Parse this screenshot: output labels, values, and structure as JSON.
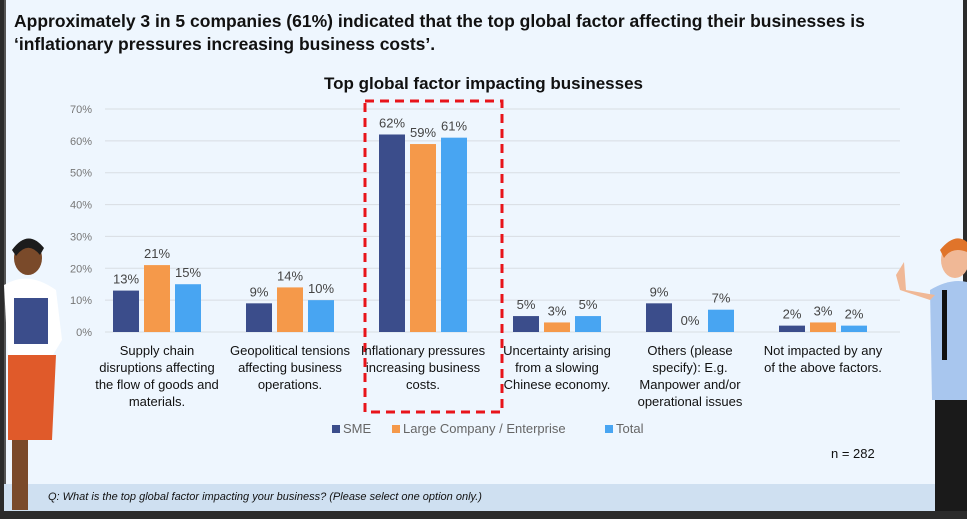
{
  "headline": "Approximately 3 in 5 companies (61%) indicated that the top global factor affecting their businesses is ‘inflationary pressures increasing business costs’.",
  "question": "Q: What is the top global factor impacting your business? (Please select one option only.)",
  "sample_size": "n = 282",
  "colors": {
    "sme": "#3b4d8b",
    "large": "#f5994a",
    "total": "#48a5f2",
    "highlight": "#e8141a"
  },
  "chart_data": {
    "type": "bar",
    "title": "Top global factor impacting businesses",
    "ylim": [
      0,
      70
    ],
    "yticks": [
      "0%",
      "10%",
      "20%",
      "30%",
      "40%",
      "50%",
      "60%",
      "70%"
    ],
    "grid": true,
    "legend_position": "bottom",
    "categories": [
      "Supply chain disruptions affecting the flow of goods and materials.",
      "Geopolitical tensions affecting business operations.",
      "Inflationary pressures increasing business costs.",
      "Uncertainty arising from a slowing Chinese economy.",
      "Others (please specify): E.g. Manpower and/or operational issues",
      "Not impacted by any of the above factors."
    ],
    "series": [
      {
        "name": "SME",
        "values": [
          13,
          9,
          62,
          5,
          9,
          2
        ]
      },
      {
        "name": "Large Company / Enterprise",
        "values": [
          21,
          14,
          59,
          3,
          0,
          3
        ]
      },
      {
        "name": "Total",
        "values": [
          15,
          10,
          61,
          5,
          7,
          2
        ]
      }
    ],
    "highlighted_category": "Inflationary pressures increasing business costs."
  }
}
